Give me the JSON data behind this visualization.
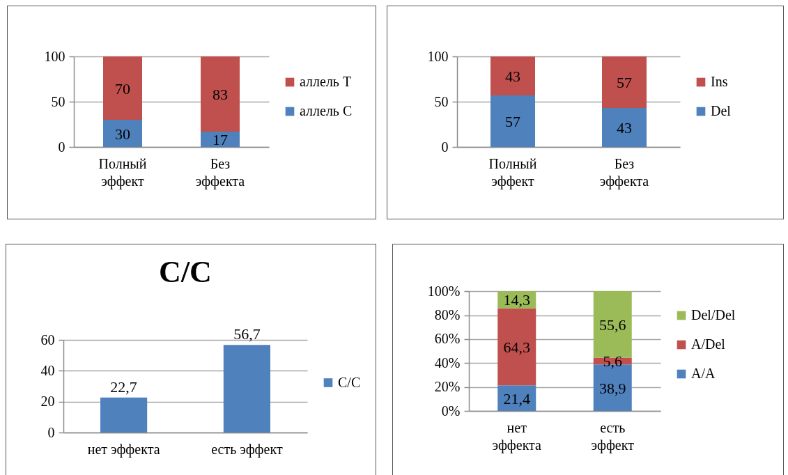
{
  "chart_data": [
    {
      "type": "bar",
      "stacked": true,
      "categories": [
        "Полный эффект",
        "Без эффекта"
      ],
      "series": [
        {
          "name": "аллель С",
          "color": "#4f81bd",
          "values": [
            30,
            17
          ]
        },
        {
          "name": "аллель Т",
          "color": "#c0504d",
          "values": [
            70,
            83
          ]
        }
      ],
      "ylim": [
        0,
        100
      ],
      "yticks": [
        0,
        50,
        100
      ],
      "grid": "y",
      "legend": "right",
      "data_labels": true
    },
    {
      "type": "bar",
      "stacked": true,
      "categories": [
        "Полный эффект",
        "Без эффекта"
      ],
      "series": [
        {
          "name": "Del",
          "color": "#4f81bd",
          "values": [
            57,
            43
          ]
        },
        {
          "name": "Ins",
          "color": "#c0504d",
          "values": [
            43,
            57
          ]
        }
      ],
      "ylim": [
        0,
        100
      ],
      "yticks": [
        0,
        50,
        100
      ],
      "grid": "y",
      "legend": "right",
      "data_labels": true
    },
    {
      "type": "bar",
      "title": "C/C",
      "categories": [
        "нет эффекта",
        "есть эффект"
      ],
      "series": [
        {
          "name": "C/C",
          "color": "#4f81bd",
          "values": [
            22.7,
            56.7
          ],
          "value_labels": [
            "22,7",
            "56,7"
          ]
        }
      ],
      "ylim": [
        0,
        60
      ],
      "yticks": [
        0,
        20,
        40,
        60
      ],
      "grid": "y",
      "legend": "right"
    },
    {
      "type": "bar",
      "stacked": true,
      "categories": [
        "нет эффекта",
        "есть эффект"
      ],
      "series": [
        {
          "name": "A/A",
          "color": "#4f81bd",
          "values": [
            21.4,
            38.9
          ],
          "value_labels": [
            "21,4",
            "38,9"
          ]
        },
        {
          "name": "A/Del",
          "color": "#c0504d",
          "values": [
            64.3,
            5.6
          ],
          "value_labels": [
            "64,3",
            "5,6"
          ]
        },
        {
          "name": "Del/Del",
          "color": "#9bbb59",
          "values": [
            14.3,
            55.6
          ],
          "value_labels": [
            "14,3",
            "55,6"
          ]
        }
      ],
      "ylim": [
        0,
        100.1
      ],
      "yticks": [
        {
          "value": 0,
          "label": "0%"
        },
        {
          "value": 20,
          "label": "20%"
        },
        {
          "value": 40,
          "label": "40%"
        },
        {
          "value": 60,
          "label": "60%"
        },
        {
          "value": 80,
          "label": "80%"
        },
        {
          "value": 100,
          "label": "100%"
        }
      ],
      "grid": "y",
      "legend": "right"
    }
  ]
}
